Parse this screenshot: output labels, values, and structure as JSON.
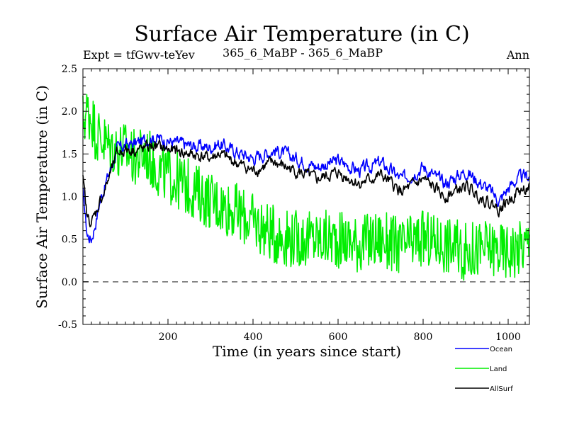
{
  "chart_data": {
    "type": "line",
    "title": "Surface Air Temperature (in C)",
    "subtitle_left": "Expt = tfGwv-teYev",
    "subtitle_center": "365_6_MaBP - 365_6_MaBP",
    "subtitle_right": "Ann",
    "xlabel": "Time (in years since start)",
    "ylabel": "Surface Air Temperature (in C)",
    "xlim": [
      0,
      1050
    ],
    "ylim": [
      -0.5,
      2.5
    ],
    "x_ticks": [
      200,
      400,
      600,
      800,
      1000
    ],
    "y_ticks": [
      "-0.5",
      "0.0",
      "0.5",
      "1.0",
      "1.5",
      "2.0",
      "2.5"
    ],
    "reference_line": 0.0,
    "legend_position": "bottom-right",
    "series": [
      {
        "name": "Ocean",
        "color": "#0000ff",
        "x": [
          0,
          10,
          20,
          30,
          40,
          50,
          60,
          70,
          80,
          100,
          120,
          140,
          160,
          180,
          200,
          250,
          300,
          320,
          350,
          400,
          450,
          500,
          550,
          600,
          650,
          700,
          750,
          800,
          850,
          900,
          950,
          980,
          1000,
          1020,
          1050
        ],
        "values": [
          1.05,
          0.55,
          0.5,
          0.7,
          0.95,
          1.1,
          1.25,
          1.4,
          1.55,
          1.6,
          1.62,
          1.65,
          1.7,
          1.68,
          1.65,
          1.6,
          1.58,
          1.62,
          1.55,
          1.45,
          1.55,
          1.45,
          1.35,
          1.42,
          1.3,
          1.4,
          1.2,
          1.35,
          1.15,
          1.3,
          1.1,
          0.95,
          1.1,
          1.2,
          1.25
        ]
      },
      {
        "name": "Land",
        "color": "#00ee00",
        "x": [
          0,
          10,
          20,
          30,
          40,
          60,
          80,
          100,
          120,
          150,
          170,
          200,
          250,
          300,
          350,
          400,
          450,
          500,
          550,
          600,
          650,
          700,
          750,
          800,
          850,
          900,
          950,
          1000,
          1050
        ],
        "values": [
          1.9,
          2.0,
          1.95,
          1.75,
          1.7,
          1.6,
          1.55,
          1.55,
          1.45,
          1.5,
          1.35,
          1.25,
          1.1,
          0.95,
          0.85,
          0.7,
          0.55,
          0.5,
          0.5,
          0.5,
          0.45,
          0.5,
          0.4,
          0.5,
          0.45,
          0.35,
          0.4,
          0.35,
          0.45
        ]
      },
      {
        "name": "AllSurf",
        "color": "#000000",
        "x": [
          0,
          10,
          20,
          30,
          40,
          50,
          60,
          70,
          80,
          100,
          120,
          140,
          160,
          180,
          200,
          250,
          300,
          320,
          350,
          400,
          450,
          500,
          550,
          600,
          650,
          700,
          750,
          800,
          850,
          900,
          950,
          980,
          1000,
          1020,
          1050
        ],
        "values": [
          1.2,
          0.75,
          0.7,
          0.8,
          0.95,
          1.05,
          1.2,
          1.35,
          1.5,
          1.55,
          1.55,
          1.55,
          1.6,
          1.58,
          1.55,
          1.5,
          1.45,
          1.5,
          1.42,
          1.3,
          1.4,
          1.3,
          1.2,
          1.28,
          1.15,
          1.25,
          1.05,
          1.2,
          1.0,
          1.12,
          0.95,
          0.85,
          0.95,
          1.05,
          1.1
        ]
      }
    ]
  }
}
